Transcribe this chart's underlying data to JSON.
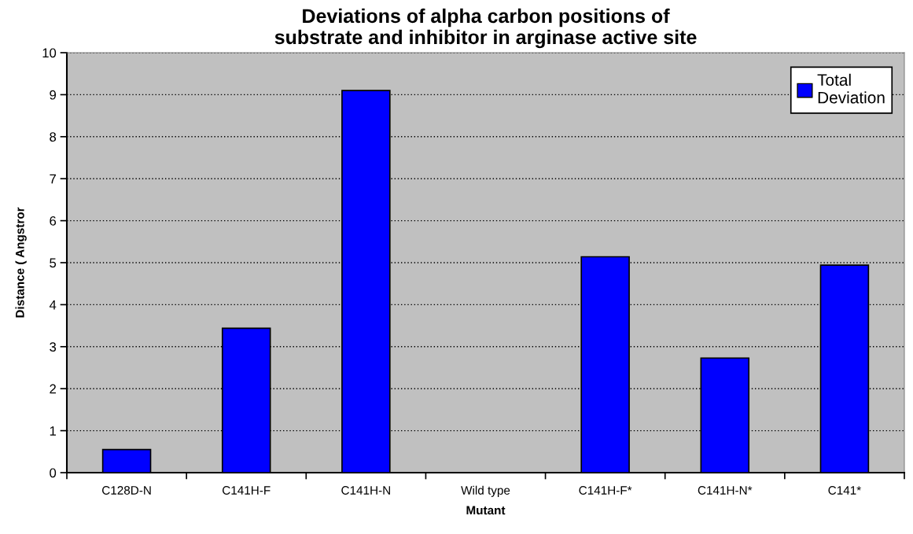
{
  "chart_data": {
    "type": "bar",
    "title": "Deviations of alpha carbon positions of\nsubstrate and inhibitor in arginase active site",
    "xlabel": "Mutant",
    "ylabel": "Distance ( Angstror",
    "categories": [
      "C128D-N",
      "C141H-F",
      "C141H-N",
      "Wild type",
      "C141H-F*",
      "C141H-N*",
      "C141*"
    ],
    "series": [
      {
        "name": "Total\nDeviation",
        "color": "#0000ff",
        "values": [
          0.55,
          3.44,
          9.1,
          0,
          5.14,
          2.73,
          4.94
        ]
      }
    ],
    "ylim": [
      0,
      10
    ],
    "yticks": [
      0,
      1,
      2,
      3,
      4,
      5,
      6,
      7,
      8,
      9,
      10
    ],
    "grid": "y",
    "legend": "top right"
  }
}
